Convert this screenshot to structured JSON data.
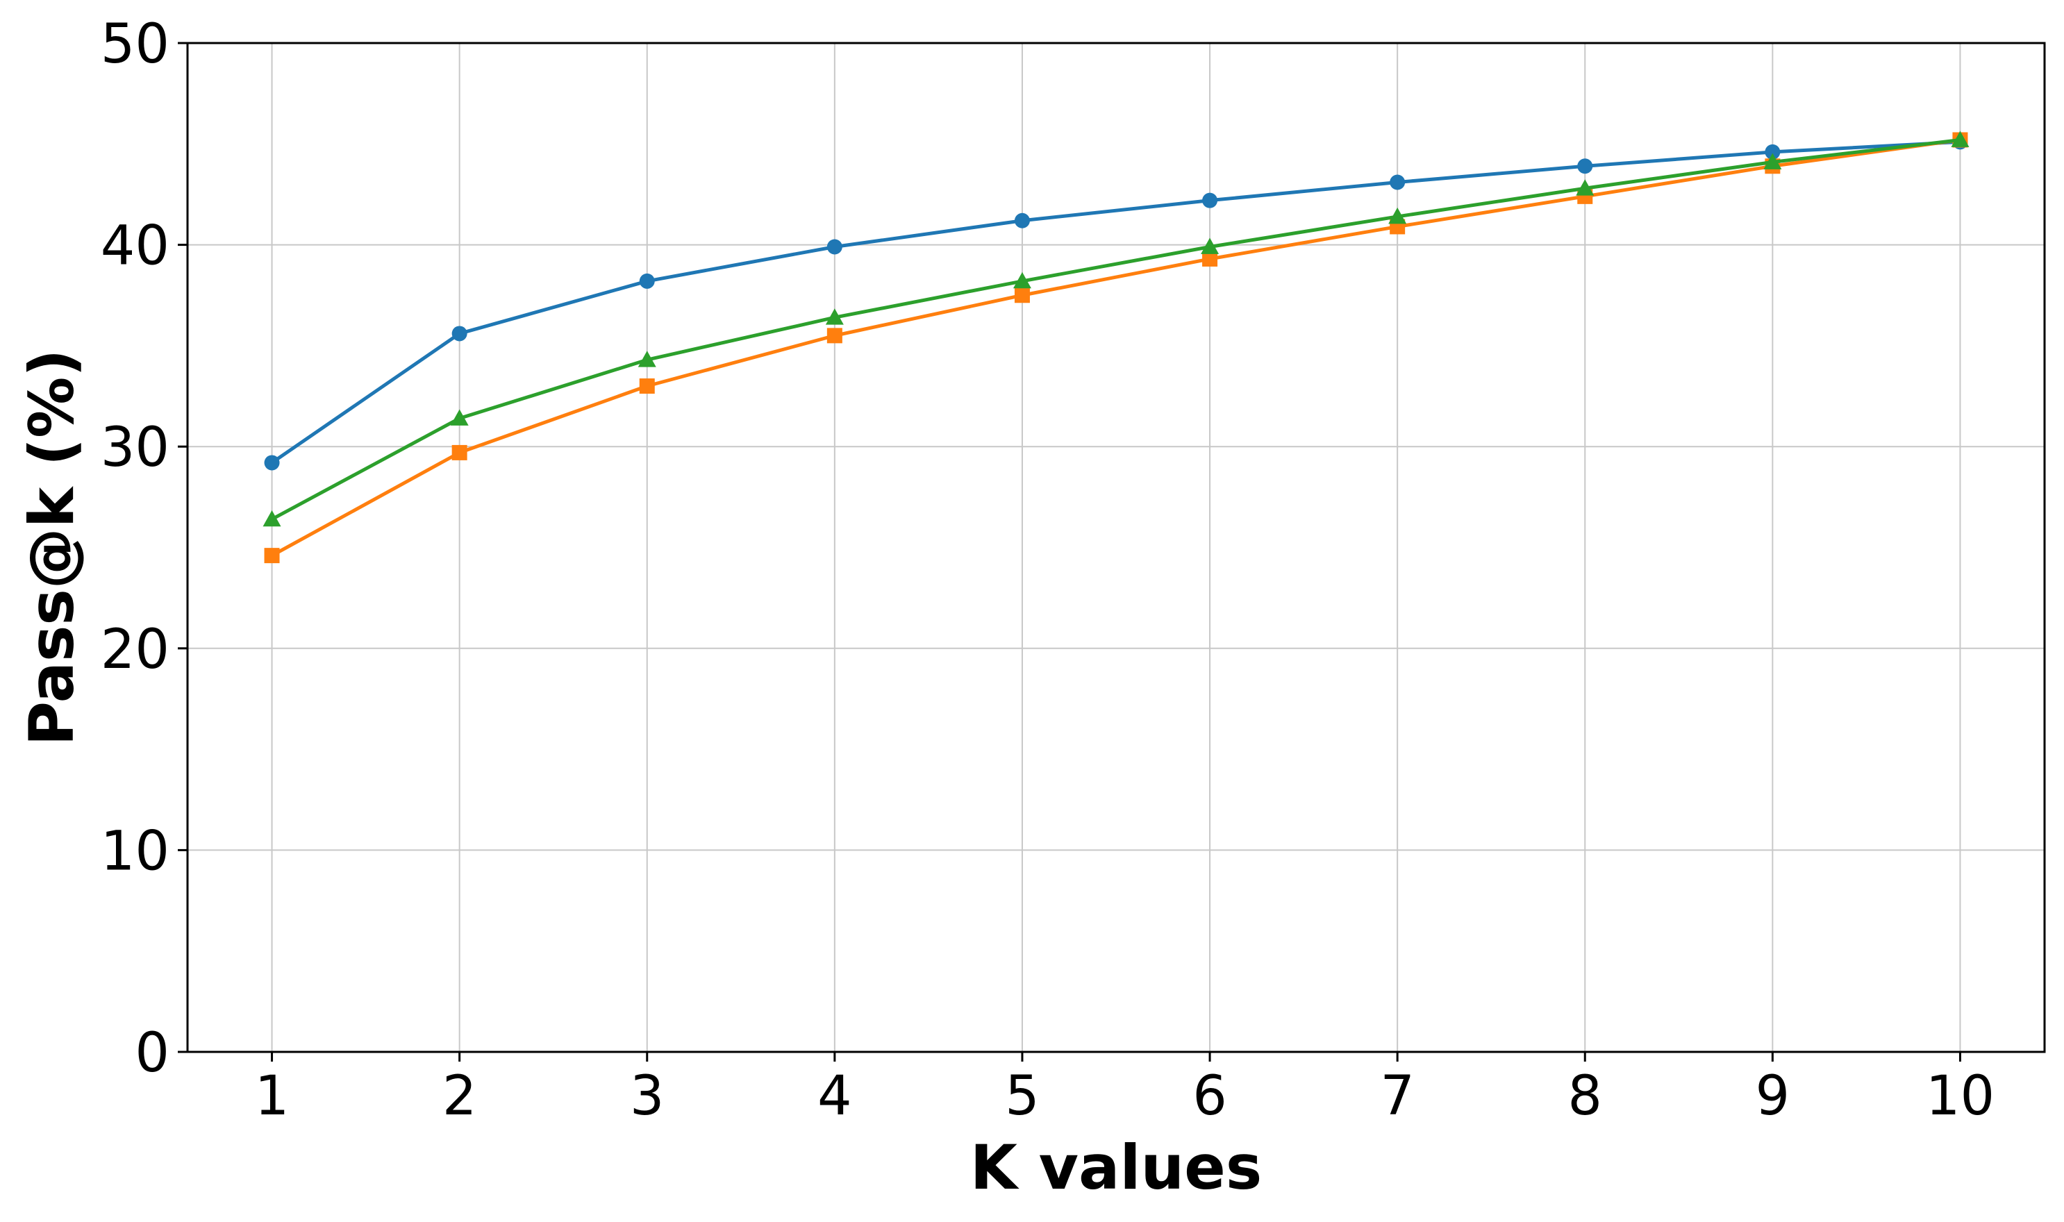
{
  "chart_data": {
    "type": "line",
    "title": "",
    "xlabel": "K values",
    "ylabel": "Pass@k (%)",
    "x": [
      1,
      2,
      3,
      4,
      5,
      6,
      7,
      8,
      9,
      10
    ],
    "xlim": [
      0.55,
      10.45
    ],
    "ylim": [
      0,
      50
    ],
    "yticks": [
      0,
      10,
      20,
      30,
      40,
      50
    ],
    "grid": true,
    "series": [
      {
        "color": "#1f77b4",
        "marker": "circle",
        "values": [
          29.2,
          35.6,
          38.2,
          39.9,
          41.2,
          42.2,
          43.1,
          43.9,
          44.6,
          45.1
        ]
      },
      {
        "color": "#ff7f0e",
        "marker": "square",
        "values": [
          24.6,
          29.7,
          33.0,
          35.5,
          37.5,
          39.3,
          40.9,
          42.4,
          43.9,
          45.2
        ]
      },
      {
        "color": "#2ca02c",
        "marker": "triangle",
        "values": [
          26.4,
          31.4,
          34.3,
          36.4,
          38.2,
          39.9,
          41.4,
          42.8,
          44.1,
          45.2
        ]
      }
    ]
  }
}
